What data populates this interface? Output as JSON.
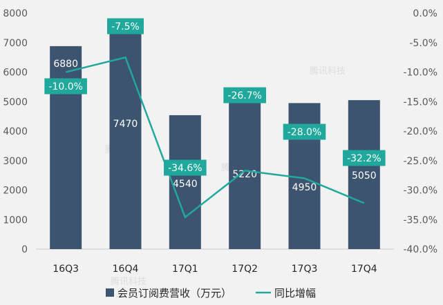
{
  "chart_data": {
    "type": "bar",
    "categories": [
      "16Q3",
      "16Q4",
      "17Q1",
      "17Q2",
      "17Q3",
      "17Q4"
    ],
    "series": [
      {
        "name": "会员订阅费营收（万元）",
        "type": "bar",
        "axis": "left",
        "values": [
          6880,
          7470,
          4540,
          5220,
          4950,
          5050
        ],
        "labels": [
          "6880",
          "7470",
          "4540",
          "5220",
          "4950",
          "5050"
        ]
      },
      {
        "name": "同比增幅",
        "type": "line",
        "axis": "right",
        "values": [
          -10.0,
          -7.5,
          -34.6,
          -26.7,
          -28.0,
          -32.2
        ],
        "labels": [
          "-10.0%",
          "-7.5%",
          "-34.6%",
          "-26.7%",
          "-28.0%",
          "-32.2%"
        ]
      }
    ],
    "y_left": {
      "min": 0,
      "max": 8000,
      "ticks": [
        "0",
        "1000",
        "2000",
        "3000",
        "4000",
        "5000",
        "6000",
        "7000",
        "8000"
      ]
    },
    "y_right": {
      "min": -40,
      "max": 0,
      "ticks": [
        "-40.0%",
        "-35.0%",
        "-30.0%",
        "-25.0%",
        "-20.0%",
        "-15.0%",
        "-10.0%",
        "-5.0%",
        "0.0%"
      ]
    },
    "grid": false,
    "legend_position": "bottom",
    "colors": {
      "bar": "#3d5470",
      "line": "#1fa89b",
      "label_box": "#1fa89b",
      "background": "#f2f2f2"
    }
  },
  "watermark": "腾讯科技"
}
